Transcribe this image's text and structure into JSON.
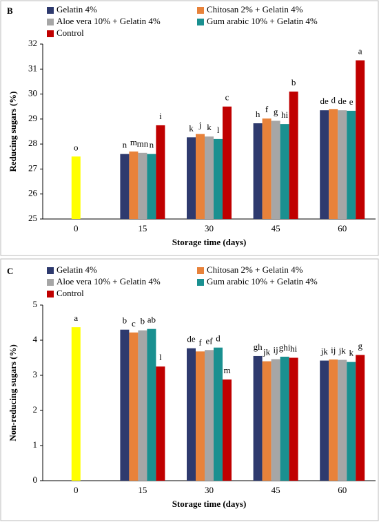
{
  "chart_data": [
    {
      "type": "bar",
      "panel": "B",
      "xlabel": "Storage time (days)",
      "ylabel": "Reducing sugars (%)",
      "categories": [
        "0",
        "15",
        "30",
        "45",
        "60"
      ],
      "ylim": [
        25,
        32
      ],
      "yticks": [
        25,
        26,
        27,
        28,
        29,
        30,
        31,
        32
      ],
      "initial": {
        "value": 27.5,
        "color": "#ffff00",
        "letter": "o"
      },
      "series": [
        {
          "name": "Gelatin 4%",
          "color": "#2e3a6e",
          "values": [
            null,
            27.6,
            28.27,
            28.83,
            29.35
          ],
          "letters": [
            null,
            "n",
            "k",
            "h",
            "de"
          ]
        },
        {
          "name": "Chitosan 2% + Gelatin 4%",
          "color": "#e8823a",
          "values": [
            null,
            27.7,
            28.4,
            29.02,
            29.4
          ],
          "letters": [
            null,
            "m",
            "j",
            "f",
            "d"
          ]
        },
        {
          "name": "Aloe vera 10% + Gelatin 4%",
          "color": "#a6a6a6",
          "values": [
            null,
            27.65,
            28.3,
            28.93,
            29.35
          ],
          "letters": [
            null,
            "mn",
            "k",
            "g",
            "de"
          ]
        },
        {
          "name": "Gum arabic 10% + Gelatin 4%",
          "color": "#1a9090",
          "values": [
            null,
            27.6,
            28.2,
            28.8,
            29.33
          ],
          "letters": [
            null,
            "n",
            "l",
            "hi",
            "e"
          ]
        },
        {
          "name": "Control",
          "color": "#c00000",
          "values": [
            null,
            28.75,
            29.5,
            30.1,
            31.35
          ],
          "letters": [
            null,
            "i",
            "c",
            "b",
            "a"
          ]
        }
      ]
    },
    {
      "type": "bar",
      "panel": "C",
      "xlabel": "Storage time (days)",
      "ylabel": "Non-reducing sugars (%)",
      "categories": [
        "0",
        "15",
        "30",
        "45",
        "60"
      ],
      "ylim": [
        0,
        5
      ],
      "yticks": [
        0,
        1,
        2,
        3,
        4,
        5
      ],
      "initial": {
        "value": 4.37,
        "color": "#ffff00",
        "letter": "a"
      },
      "series": [
        {
          "name": "Gelatin 4%",
          "color": "#2e3a6e",
          "values": [
            null,
            4.3,
            3.77,
            3.55,
            3.42
          ],
          "letters": [
            null,
            "b",
            "de",
            "gh",
            "jk"
          ]
        },
        {
          "name": "Chitosan 2% + Gelatin 4%",
          "color": "#e8823a",
          "values": [
            null,
            4.22,
            3.68,
            3.4,
            3.45
          ],
          "letters": [
            null,
            "c",
            "f",
            "jk",
            "ij"
          ]
        },
        {
          "name": "Aloe vera 10% + Gelatin 4%",
          "color": "#a6a6a6",
          "values": [
            null,
            4.28,
            3.72,
            3.46,
            3.44
          ],
          "letters": [
            null,
            "b",
            "ef",
            "ij",
            "jk"
          ]
        },
        {
          "name": "Gum arabic 10% + Gelatin 4%",
          "color": "#1a9090",
          "values": [
            null,
            4.32,
            3.79,
            3.53,
            3.38
          ],
          "letters": [
            null,
            "ab",
            "d",
            "ghi",
            "k"
          ]
        },
        {
          "name": "Control",
          "color": "#c00000",
          "values": [
            null,
            3.25,
            2.88,
            3.5,
            3.58
          ],
          "letters": [
            null,
            "l",
            "m",
            "hi",
            "g"
          ]
        }
      ]
    }
  ]
}
